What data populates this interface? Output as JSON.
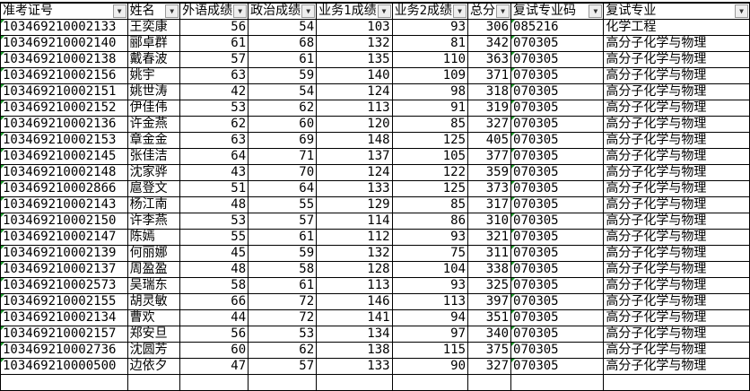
{
  "headers": [
    "准考证号",
    "姓名",
    "外语成绩",
    "政治成绩",
    "业务1成绩",
    "业务2成绩",
    "总分",
    "复试专业码",
    "复试专业"
  ],
  "rows": [
    [
      "103469210002133",
      "王奕康",
      56,
      54,
      103,
      93,
      306,
      "085216",
      "化学工程"
    ],
    [
      "103469210002140",
      "郦卓群",
      61,
      68,
      132,
      81,
      342,
      "070305",
      "高分子化学与物理"
    ],
    [
      "103469210002138",
      "戴春波",
      57,
      61,
      135,
      110,
      363,
      "070305",
      "高分子化学与物理"
    ],
    [
      "103469210002156",
      "姚宇",
      63,
      59,
      140,
      109,
      371,
      "070305",
      "高分子化学与物理"
    ],
    [
      "103469210002151",
      "姚世涛",
      42,
      54,
      124,
      98,
      318,
      "070305",
      "高分子化学与物理"
    ],
    [
      "103469210002152",
      "伊佳伟",
      53,
      62,
      113,
      91,
      319,
      "070305",
      "高分子化学与物理"
    ],
    [
      "103469210002136",
      "许金燕",
      62,
      60,
      120,
      85,
      327,
      "070305",
      "高分子化学与物理"
    ],
    [
      "103469210002153",
      "章金金",
      63,
      69,
      148,
      125,
      405,
      "070305",
      "高分子化学与物理"
    ],
    [
      "103469210002145",
      "张佳洁",
      64,
      71,
      137,
      105,
      377,
      "070305",
      "高分子化学与物理"
    ],
    [
      "103469210002148",
      "沈家骅",
      43,
      70,
      124,
      122,
      359,
      "070305",
      "高分子化学与物理"
    ],
    [
      "103469210002866",
      "扈登文",
      51,
      64,
      133,
      125,
      373,
      "070305",
      "高分子化学与物理"
    ],
    [
      "103469210002143",
      "杨江南",
      48,
      55,
      129,
      85,
      317,
      "070305",
      "高分子化学与物理"
    ],
    [
      "103469210002150",
      "许李燕",
      53,
      57,
      114,
      86,
      310,
      "070305",
      "高分子化学与物理"
    ],
    [
      "103469210002147",
      "陈嫣",
      55,
      61,
      112,
      93,
      321,
      "070305",
      "高分子化学与物理"
    ],
    [
      "103469210002139",
      "何丽娜",
      45,
      59,
      132,
      75,
      311,
      "070305",
      "高分子化学与物理"
    ],
    [
      "103469210002137",
      "周盈盈",
      48,
      58,
      128,
      104,
      338,
      "070305",
      "高分子化学与物理"
    ],
    [
      "103469210002573",
      "吴瑞东",
      58,
      61,
      113,
      93,
      325,
      "070305",
      "高分子化学与物理"
    ],
    [
      "103469210002155",
      "胡灵敏",
      66,
      72,
      146,
      113,
      397,
      "070305",
      "高分子化学与物理"
    ],
    [
      "103469210002134",
      "曹欢",
      44,
      72,
      141,
      94,
      351,
      "070305",
      "高分子化学与物理"
    ],
    [
      "103469210002157",
      "郑安旦",
      56,
      53,
      134,
      97,
      340,
      "070305",
      "高分子化学与物理"
    ],
    [
      "103469210002736",
      "沈圆芳",
      60,
      62,
      138,
      115,
      375,
      "070305",
      "高分子化学与物理"
    ],
    [
      "103469210000500",
      "边依夕",
      47,
      57,
      133,
      90,
      327,
      "070305",
      "高分子化学与物理"
    ]
  ],
  "filter_icon": "dropdown-arrow-icon",
  "colors": {
    "error_triangle": "#1a9a2a"
  }
}
